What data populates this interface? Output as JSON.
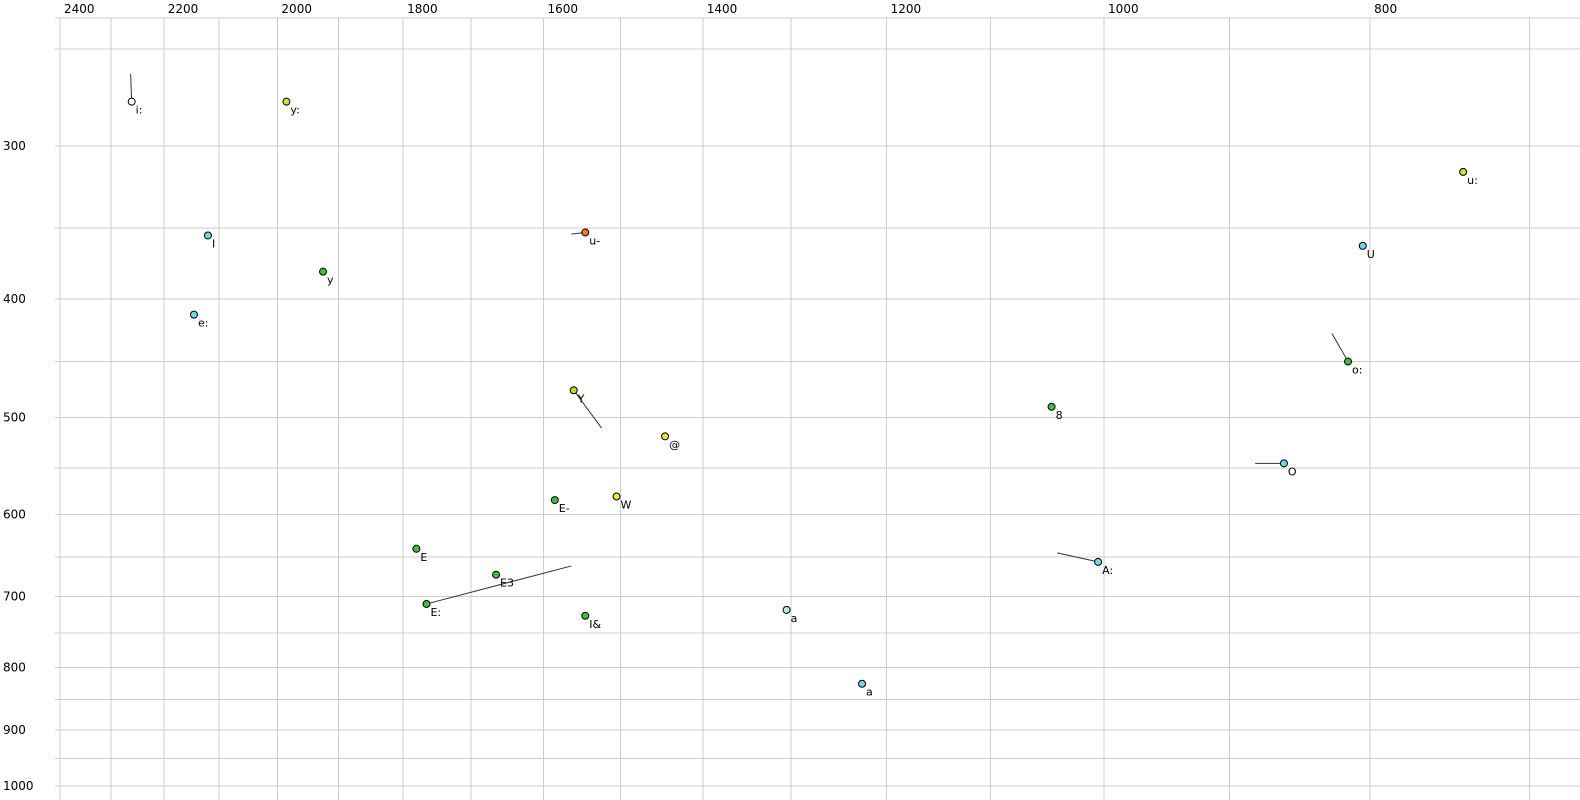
{
  "chart_data": {
    "type": "scatter",
    "title": "",
    "description": "Vowel formant plot: F2 (Hz) on reversed log x-axis (top), F1 (Hz) on log y-axis (left)",
    "x_axis": {
      "scale": "log",
      "reversed": true,
      "tick_labels": [
        2400,
        2200,
        2000,
        1800,
        1600,
        1400,
        1200,
        1000,
        800
      ],
      "gridlines": [
        2400,
        2300,
        2200,
        2100,
        2000,
        1900,
        1800,
        1700,
        1600,
        1500,
        1400,
        1300,
        1200,
        1100,
        1000,
        900,
        800,
        700
      ]
    },
    "y_axis": {
      "scale": "log",
      "tick_labels": [
        300,
        400,
        500,
        600,
        700,
        800,
        900,
        1000
      ],
      "gridlines": [
        250,
        300,
        350,
        400,
        450,
        500,
        550,
        600,
        650,
        700,
        750,
        800,
        850,
        900,
        950,
        1000
      ]
    },
    "colors": {
      "grid": "#cccccc",
      "green": "#3fbf3f",
      "cyan": "#72d6e6",
      "yellow_green": "#cfe23a",
      "yellow": "#ede83a",
      "orange": "#ee7722",
      "pale_green": "#b9e9c9",
      "white": "#ffffff"
    },
    "points": [
      {
        "label": "i:",
        "f2": 2260,
        "f1": 276,
        "fill": "#ffffff",
        "tail": {
          "f2": 2262,
          "f1": 262
        }
      },
      {
        "label": "y:",
        "f2": 1985,
        "f1": 276,
        "fill": "#cfe23a"
      },
      {
        "label": "u:",
        "f2": 740,
        "f1": 315,
        "fill": "#cfe23a"
      },
      {
        "label": "I",
        "f2": 2120,
        "f1": 355,
        "fill": "#72d6e6"
      },
      {
        "label": "u-",
        "f2": 1545,
        "f1": 353,
        "fill": "#ee7722",
        "tail": {
          "f2": 1563,
          "f1": 354
        }
      },
      {
        "label": "U",
        "f2": 805,
        "f1": 362,
        "fill": "#72d6e6"
      },
      {
        "label": "y",
        "f2": 1925,
        "f1": 380,
        "fill": "#3fbf3f"
      },
      {
        "label": "e:",
        "f2": 2145,
        "f1": 412,
        "fill": "#72d6e6"
      },
      {
        "label": "o:",
        "f2": 815,
        "f1": 450,
        "fill": "#3fbf3f",
        "tail": {
          "f2": 826,
          "f1": 427
        }
      },
      {
        "label": "Y",
        "f2": 1560,
        "f1": 475,
        "fill": "#b8dc30",
        "tail": {
          "f2": 1524,
          "f1": 510
        }
      },
      {
        "label": "8",
        "f2": 1045,
        "f1": 490,
        "fill": "#3fbf3f"
      },
      {
        "label": "@",
        "f2": 1445,
        "f1": 518,
        "fill": "#e6e23a"
      },
      {
        "label": "O",
        "f2": 860,
        "f1": 545,
        "fill": "#72d6e6",
        "tail": {
          "f2": 881,
          "f1": 545
        }
      },
      {
        "label": "E-",
        "f2": 1585,
        "f1": 584,
        "fill": "#3fbf3f"
      },
      {
        "label": "W",
        "f2": 1505,
        "f1": 580,
        "fill": "#f0e83a"
      },
      {
        "label": "E",
        "f2": 1780,
        "f1": 640,
        "fill": "#3fbf3f"
      },
      {
        "label": "E3",
        "f2": 1665,
        "f1": 672,
        "fill": "#3fbf3f"
      },
      {
        "label": "E:",
        "f2": 1765,
        "f1": 710,
        "fill": "#3fbf3f",
        "tail": {
          "f2": 1563,
          "f1": 661
        }
      },
      {
        "label": "I&",
        "f2": 1545,
        "f1": 726,
        "fill": "#3fbf3f"
      },
      {
        "label": "a",
        "f2": 1305,
        "f1": 718,
        "fill": "#b9e9c9",
        "label_color": "#999999"
      },
      {
        "label": "a",
        "f2": 1225,
        "f1": 825,
        "fill": "#72d6e6"
      },
      {
        "label": "A:",
        "f2": 1005,
        "f1": 656,
        "fill": "#72d6e6",
        "tail": {
          "f2": 1040,
          "f1": 645
        }
      }
    ]
  }
}
